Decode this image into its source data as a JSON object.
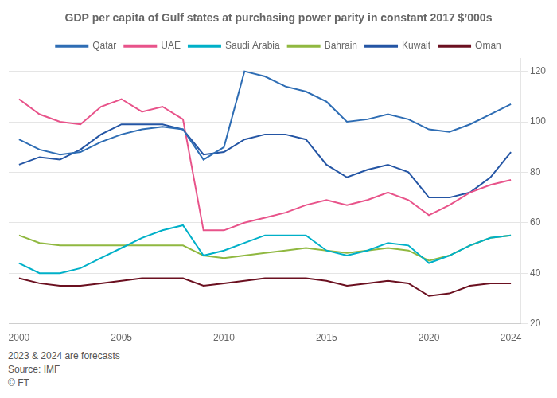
{
  "chart_data": {
    "type": "line",
    "title": "GDP per capita of Gulf states at purchasing power parity in constant 2017 $’000s",
    "annotations": [
      "2023 & 2024 are forecasts",
      "Source: IMF",
      "© FT"
    ],
    "x": [
      2000,
      2001,
      2002,
      2003,
      2004,
      2005,
      2006,
      2007,
      2008,
      2009,
      2010,
      2011,
      2012,
      2013,
      2014,
      2015,
      2016,
      2017,
      2018,
      2019,
      2020,
      2021,
      2022,
      2023,
      2024
    ],
    "series": [
      {
        "name": "Qatar",
        "color": "#2e6db4",
        "values": [
          93,
          89,
          87,
          88,
          92,
          95,
          97,
          98,
          97,
          85,
          90,
          120,
          118,
          114,
          112,
          108,
          100,
          101,
          103,
          101,
          97,
          96,
          99,
          103,
          107
        ]
      },
      {
        "name": "UAE",
        "color": "#e8538a",
        "values": [
          109,
          103,
          100,
          99,
          106,
          109,
          104,
          106,
          101,
          57,
          57,
          60,
          62,
          64,
          67,
          69,
          67,
          69,
          72,
          69,
          63,
          67,
          72,
          75,
          77
        ]
      },
      {
        "name": "Saudi Arabia",
        "color": "#00b0c8",
        "values": [
          44,
          40,
          40,
          42,
          46,
          50,
          54,
          57,
          59,
          47,
          49,
          52,
          55,
          55,
          55,
          49,
          47,
          49,
          52,
          51,
          44,
          47,
          51,
          54,
          55
        ]
      },
      {
        "name": "Bahrain",
        "color": "#90b840",
        "values": [
          55,
          52,
          51,
          51,
          51,
          51,
          51,
          51,
          51,
          47,
          46,
          47,
          48,
          49,
          50,
          49,
          48,
          49,
          50,
          49,
          45,
          47,
          51,
          54,
          55
        ]
      },
      {
        "name": "Kuwait",
        "color": "#2455a4",
        "values": [
          83,
          86,
          85,
          89,
          95,
          99,
          99,
          99,
          97,
          87,
          88,
          93,
          95,
          95,
          93,
          83,
          78,
          81,
          83,
          80,
          70,
          70,
          72,
          78,
          88
        ]
      },
      {
        "name": "Oman",
        "color": "#6b1020",
        "values": [
          38,
          36,
          35,
          35,
          36,
          37,
          38,
          38,
          38,
          35,
          36,
          37,
          38,
          38,
          38,
          37,
          35,
          36,
          37,
          36,
          31,
          32,
          35,
          36,
          36
        ]
      }
    ],
    "xlim": [
      1999.5,
      2024.5
    ],
    "xticks": [
      2000,
      2005,
      2010,
      2015,
      2020,
      2024
    ],
    "ylim": [
      20,
      125
    ],
    "yticks": [
      20,
      40,
      60,
      80,
      100,
      120
    ],
    "grid": true,
    "legend": "top"
  }
}
